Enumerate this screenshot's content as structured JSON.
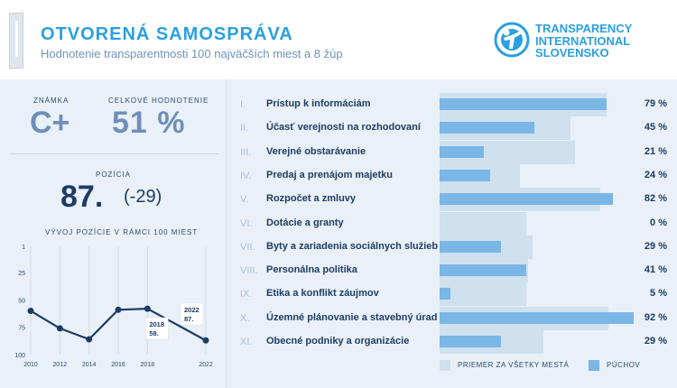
{
  "header": {
    "title": "OTVORENÁ SAMOSPRÁVA",
    "subtitle": "Hodnotenie transparentnosti 100 najväčších miest a 8 žúp",
    "logo_text": [
      "TRANSPARENCY",
      "INTERNATIONAL",
      "SLOVENSKO"
    ]
  },
  "summary": {
    "grade_label": "ZNÁMKA",
    "grade": "C+",
    "overall_label": "CELKOVÉ HODNOTENIE",
    "overall": "51 %",
    "position_label": "POZÍCIA",
    "position": "87.",
    "position_change": "(-29)",
    "chart_title": "VÝVOJ POZÍCIE V RÁMCI 100 MIEST"
  },
  "chart_data": {
    "type": "line",
    "x": [
      2010,
      2012,
      2014,
      2016,
      2018,
      2022
    ],
    "y": [
      60,
      76,
      86,
      59,
      58,
      87
    ],
    "ylim": [
      100,
      1
    ],
    "yticks": [
      1,
      25,
      50,
      75,
      100
    ],
    "xticks": [
      2010,
      2012,
      2014,
      2016,
      2018,
      2022
    ],
    "annotations": [
      {
        "year": "2018",
        "pos": "58."
      },
      {
        "year": "2022",
        "pos": "87."
      }
    ],
    "color": "#1b3c66"
  },
  "categories": [
    {
      "num": "I.",
      "label": "Prístup k informáciám",
      "value": 79,
      "avg": 79,
      "pct": "79 %"
    },
    {
      "num": "II.",
      "label": "Účasť verejnosti na rozhodovaní",
      "value": 45,
      "avg": 62,
      "pct": "45 %"
    },
    {
      "num": "III.",
      "label": "Verejné obstarávanie",
      "value": 21,
      "avg": 64,
      "pct": "21 %"
    },
    {
      "num": "IV.",
      "label": "Predaj a prenájom majetku",
      "value": 24,
      "avg": 38,
      "pct": "24 %"
    },
    {
      "num": "V.",
      "label": "Rozpočet a zmluvy",
      "value": 82,
      "avg": 76,
      "pct": "82 %"
    },
    {
      "num": "VI.",
      "label": "Dotácie a granty",
      "value": 0,
      "avg": 41,
      "pct": "0 %"
    },
    {
      "num": "VII.",
      "label": "Byty a zariadenia sociálnych služieb",
      "value": 29,
      "avg": 44,
      "pct": "29 %"
    },
    {
      "num": "VIII.",
      "label": "Personálna politika",
      "value": 41,
      "avg": 42,
      "pct": "41 %"
    },
    {
      "num": "IX.",
      "label": "Etika a konflikt záujmov",
      "value": 5,
      "avg": 41,
      "pct": "5 %"
    },
    {
      "num": "X.",
      "label": "Územné plánovanie a stavebný úrad",
      "value": 92,
      "avg": 80,
      "pct": "92 %"
    },
    {
      "num": "XI.",
      "label": "Obecné podniky a organizácie",
      "value": 29,
      "avg": 49,
      "pct": "29 %"
    }
  ],
  "legend": {
    "avg_label": "PRIEMER ZA VŠETKY MESTÁ",
    "city_label": "PÚCHOV",
    "avg_color": "#cfe0ef",
    "city_color": "#7ab7e7"
  }
}
